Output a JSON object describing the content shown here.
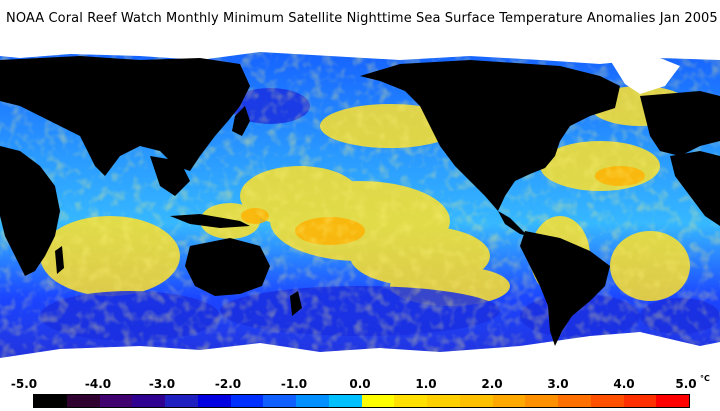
{
  "title": "NOAA Coral Reef Watch Monthly Minimum Satellite Nighttime Sea Surface Temperature Anomalies   Jan 2005",
  "legend": {
    "labels": [
      "-5.0",
      "-4.0",
      "-3.0",
      "-2.0",
      "-1.0",
      "0.0",
      "1.0",
      "2.0",
      "3.0",
      "4.0",
      "5.0"
    ],
    "unit": "°C",
    "colors": [
      "#000000",
      "#300030",
      "#400070",
      "#300090",
      "#2020c0",
      "#0000e0",
      "#0030ff",
      "#1060ff",
      "#0090ff",
      "#00c0ff",
      "#ffff00",
      "#ffe000",
      "#ffd000",
      "#ffc000",
      "#ffa800",
      "#ff9000",
      "#ff7000",
      "#ff5000",
      "#ff3000",
      "#ff0000"
    ]
  },
  "palette": {
    "land": "#000000",
    "ice": "#ffffff",
    "ocean_base": "#1e7bff",
    "warm": "#ffe22a",
    "cool": "#1a3cff"
  }
}
